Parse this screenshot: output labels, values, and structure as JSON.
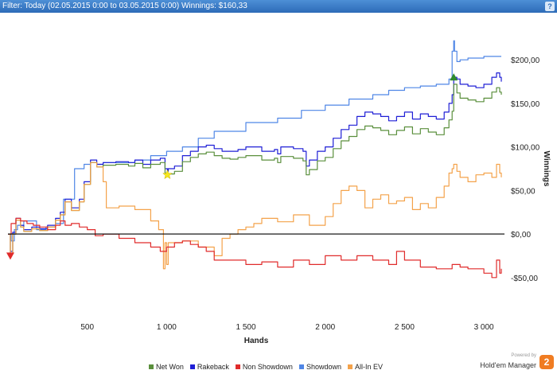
{
  "filter_bar": {
    "text": "Filter: Today (02.05.2015 0:00 to 03.05.2015 0:00)  Winnings: $160,33",
    "help_label": "?"
  },
  "brand": {
    "powered_by": "Powered by",
    "name": "Hold'em Manager",
    "logo_glyph": "2"
  },
  "legend": [
    {
      "label": "Net Won",
      "color": "#5a8f3c"
    },
    {
      "label": "Rakeback",
      "color": "#1f1fd6"
    },
    {
      "label": "Non Showdown",
      "color": "#e02b2b"
    },
    {
      "label": "Showdown",
      "color": "#4f86e6"
    },
    {
      "label": "All-In EV",
      "color": "#f4a24a"
    }
  ],
  "chart_data": {
    "type": "line",
    "title": "",
    "xlabel": "Hands",
    "ylabel": "Winnings",
    "xlim": [
      0,
      3130
    ],
    "ylim": [
      -95,
      245
    ],
    "x_ticks": [
      500,
      1000,
      1500,
      2000,
      2500,
      3000
    ],
    "x_tick_labels": [
      "500",
      "1 000",
      "1 500",
      "2 000",
      "2 500",
      "3 000"
    ],
    "y_ticks": [
      -50,
      0,
      50,
      100,
      150,
      200
    ],
    "y_tick_labels": [
      "-$50,00",
      "$0,00",
      "$50,00",
      "$100,00",
      "$150,00",
      "$200,00"
    ],
    "grid": false,
    "legend_position": "bottom",
    "markers": [
      {
        "type": "down-triangle",
        "x": 15,
        "y": -25,
        "color": "#e02b2b"
      },
      {
        "type": "star",
        "x": 1005,
        "y": 68,
        "color": "#f5e61e"
      },
      {
        "type": "up-triangle",
        "x": 2810,
        "y": 180,
        "color": "#2e8b2e"
      }
    ],
    "series": [
      {
        "name": "Showdown",
        "color": "#4f86e6",
        "x": [
          0,
          20,
          40,
          60,
          100,
          180,
          240,
          300,
          350,
          420,
          480,
          520,
          560,
          600,
          700,
          800,
          900,
          1000,
          1100,
          1200,
          1300,
          1400,
          1500,
          1550,
          1700,
          1800,
          1850,
          1950,
          2000,
          2100,
          2150,
          2200,
          2300,
          2400,
          2500,
          2600,
          2700,
          2780,
          2800,
          2810,
          2815,
          2830,
          2850,
          2900,
          3000,
          3110
        ],
        "values": [
          0,
          -8,
          5,
          10,
          15,
          5,
          8,
          12,
          40,
          75,
          80,
          82,
          80,
          82,
          82,
          85,
          90,
          95,
          100,
          110,
          118,
          118,
          128,
          128,
          133,
          133,
          142,
          142,
          148,
          148,
          155,
          155,
          160,
          165,
          168,
          170,
          172,
          178,
          210,
          222,
          210,
          198,
          200,
          202,
          204,
          204
        ]
      },
      {
        "name": "Rakeback",
        "color": "#1f1fd6",
        "x": [
          0,
          15,
          30,
          50,
          80,
          100,
          150,
          200,
          250,
          300,
          330,
          360,
          400,
          450,
          480,
          520,
          560,
          600,
          680,
          760,
          800,
          850,
          900,
          960,
          990,
          1005,
          1010,
          1050,
          1100,
          1150,
          1200,
          1250,
          1300,
          1350,
          1400,
          1450,
          1500,
          1600,
          1680,
          1700,
          1720,
          1800,
          1860,
          1880,
          1900,
          1950,
          2000,
          2050,
          2100,
          2150,
          2200,
          2250,
          2300,
          2350,
          2400,
          2450,
          2500,
          2550,
          2600,
          2650,
          2700,
          2750,
          2780,
          2800,
          2810,
          2830,
          2850,
          2900,
          2950,
          3000,
          3050,
          3080,
          3100,
          3110
        ],
        "values": [
          0,
          -20,
          2,
          18,
          10,
          5,
          8,
          6,
          10,
          18,
          25,
          40,
          30,
          40,
          60,
          85,
          80,
          82,
          83,
          82,
          85,
          80,
          85,
          87,
          75,
          72,
          75,
          78,
          90,
          95,
          100,
          102,
          98,
          95,
          95,
          97,
          100,
          95,
          97,
          92,
          100,
          98,
          95,
          78,
          85,
          95,
          100,
          110,
          120,
          125,
          135,
          140,
          138,
          135,
          130,
          135,
          140,
          132,
          138,
          135,
          132,
          140,
          150,
          160,
          180,
          178,
          172,
          170,
          168,
          172,
          180,
          185,
          180,
          175
        ]
      },
      {
        "name": "Net Won",
        "color": "#5a8f3c",
        "x": [
          0,
          15,
          30,
          50,
          80,
          100,
          150,
          200,
          250,
          300,
          330,
          360,
          400,
          450,
          480,
          520,
          560,
          600,
          680,
          760,
          800,
          850,
          900,
          960,
          990,
          1005,
          1010,
          1050,
          1100,
          1150,
          1200,
          1250,
          1300,
          1350,
          1400,
          1450,
          1500,
          1600,
          1680,
          1700,
          1720,
          1800,
          1860,
          1880,
          1900,
          1950,
          2000,
          2050,
          2100,
          2150,
          2200,
          2250,
          2300,
          2350,
          2400,
          2450,
          2500,
          2550,
          2600,
          2650,
          2700,
          2750,
          2780,
          2800,
          2810,
          2830,
          2850,
          2900,
          2950,
          3000,
          3050,
          3080,
          3100,
          3110
        ],
        "values": [
          0,
          -22,
          0,
          16,
          8,
          3,
          6,
          4,
          8,
          16,
          22,
          37,
          27,
          37,
          57,
          82,
          77,
          79,
          80,
          78,
          81,
          76,
          80,
          82,
          70,
          66,
          69,
          72,
          83,
          88,
          92,
          94,
          90,
          87,
          86,
          88,
          90,
          85,
          87,
          82,
          89,
          87,
          84,
          68,
          74,
          84,
          88,
          98,
          107,
          112,
          120,
          124,
          122,
          119,
          114,
          119,
          123,
          115,
          121,
          117,
          114,
          122,
          131,
          141,
          172,
          162,
          156,
          154,
          152,
          156,
          163,
          168,
          163,
          160
        ]
      },
      {
        "name": "All-In EV",
        "color": "#f4a24a",
        "x": [
          0,
          15,
          30,
          50,
          80,
          100,
          150,
          200,
          250,
          300,
          330,
          360,
          400,
          450,
          480,
          520,
          560,
          600,
          620,
          700,
          800,
          900,
          950,
          980,
          990,
          1000,
          1010,
          1100,
          1200,
          1300,
          1350,
          1400,
          1450,
          1500,
          1550,
          1600,
          1700,
          1800,
          1900,
          2000,
          2050,
          2100,
          2150,
          2200,
          2250,
          2300,
          2350,
          2400,
          2450,
          2500,
          2550,
          2600,
          2650,
          2700,
          2750,
          2780,
          2800,
          2810,
          2830,
          2850,
          2900,
          2950,
          3000,
          3050,
          3080,
          3100,
          3110
        ],
        "values": [
          0,
          -22,
          0,
          16,
          8,
          3,
          6,
          4,
          8,
          16,
          22,
          37,
          27,
          37,
          57,
          82,
          77,
          60,
          30,
          32,
          28,
          15,
          5,
          -40,
          -10,
          -35,
          -10,
          -8,
          -15,
          -25,
          -5,
          0,
          5,
          8,
          12,
          18,
          14,
          22,
          10,
          20,
          35,
          50,
          55,
          50,
          30,
          40,
          45,
          35,
          38,
          42,
          28,
          35,
          30,
          42,
          55,
          70,
          75,
          80,
          72,
          65,
          60,
          68,
          70,
          65,
          80,
          70,
          65
        ]
      },
      {
        "name": "Non Showdown",
        "color": "#e02b2b",
        "x": [
          0,
          20,
          50,
          80,
          120,
          160,
          200,
          250,
          300,
          330,
          360,
          400,
          450,
          500,
          550,
          600,
          700,
          800,
          900,
          960,
          1000,
          1050,
          1100,
          1150,
          1200,
          1250,
          1300,
          1400,
          1500,
          1600,
          1700,
          1800,
          1900,
          2000,
          2100,
          2200,
          2300,
          2400,
          2450,
          2500,
          2600,
          2700,
          2800,
          2850,
          2900,
          3000,
          3050,
          3080,
          3100,
          3110
        ],
        "values": [
          0,
          12,
          18,
          15,
          12,
          10,
          8,
          5,
          10,
          15,
          10,
          12,
          8,
          5,
          -2,
          0,
          -5,
          -10,
          -15,
          -20,
          -15,
          -10,
          -8,
          -12,
          -15,
          -20,
          -30,
          -30,
          -35,
          -32,
          -38,
          -30,
          -35,
          -25,
          -30,
          -25,
          -30,
          -35,
          -20,
          -30,
          -38,
          -40,
          -35,
          -38,
          -40,
          -45,
          -50,
          -30,
          -45,
          -40
        ]
      }
    ]
  }
}
